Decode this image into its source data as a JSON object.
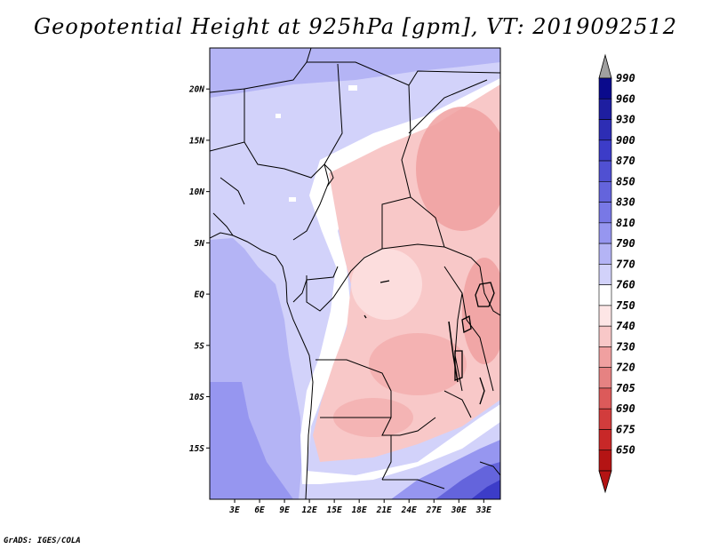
{
  "figure": {
    "title": "Geopotential Height at 925hPa [gpm], VT: 2019092512",
    "credit": "GrADS: IGES/COLA"
  },
  "map": {
    "lat_range": [
      -20,
      24
    ],
    "lon_range": [
      0,
      35
    ],
    "lat_ticks": [
      {
        "value": 20,
        "label": "20N"
      },
      {
        "value": 15,
        "label": "15N"
      },
      {
        "value": 10,
        "label": "10N"
      },
      {
        "value": 5,
        "label": "5N"
      },
      {
        "value": 0,
        "label": "EQ"
      },
      {
        "value": -5,
        "label": "5S"
      },
      {
        "value": -10,
        "label": "10S"
      },
      {
        "value": -15,
        "label": "15S"
      }
    ],
    "lon_ticks": [
      {
        "value": 3,
        "label": "3E"
      },
      {
        "value": 6,
        "label": "6E"
      },
      {
        "value": 9,
        "label": "9E"
      },
      {
        "value": 12,
        "label": "12E"
      },
      {
        "value": 15,
        "label": "15E"
      },
      {
        "value": 18,
        "label": "18E"
      },
      {
        "value": 21,
        "label": "21E"
      },
      {
        "value": 24,
        "label": "24E"
      },
      {
        "value": 27,
        "label": "27E"
      },
      {
        "value": 30,
        "label": "30E"
      },
      {
        "value": 33,
        "label": "33E"
      }
    ]
  },
  "colorbar": {
    "levels": [
      {
        "label": "990",
        "color": "#0a0a8c"
      },
      {
        "label": "960",
        "color": "#1e1ea0"
      },
      {
        "label": "930",
        "color": "#2d2db4"
      },
      {
        "label": "900",
        "color": "#3c3cc8"
      },
      {
        "label": "870",
        "color": "#5050d2"
      },
      {
        "label": "850",
        "color": "#6464dc"
      },
      {
        "label": "830",
        "color": "#7878e6"
      },
      {
        "label": "810",
        "color": "#9696f0"
      },
      {
        "label": "790",
        "color": "#b4b4f5"
      },
      {
        "label": "770",
        "color": "#d2d2fa"
      },
      {
        "label": "760",
        "color": "#ffffff"
      },
      {
        "label": "750",
        "color": "#fde6e6"
      },
      {
        "label": "740",
        "color": "#f8c8c8"
      },
      {
        "label": "730",
        "color": "#f0a0a0"
      },
      {
        "label": "720",
        "color": "#e68282"
      },
      {
        "label": "705",
        "color": "#dc5a5a"
      },
      {
        "label": "690",
        "color": "#d23c3c"
      },
      {
        "label": "675",
        "color": "#c82828"
      },
      {
        "label": "650",
        "color": "#b41414"
      }
    ],
    "top_arrow_color": "#a0a0a0",
    "bottom_arrow_color": "#b41414"
  }
}
